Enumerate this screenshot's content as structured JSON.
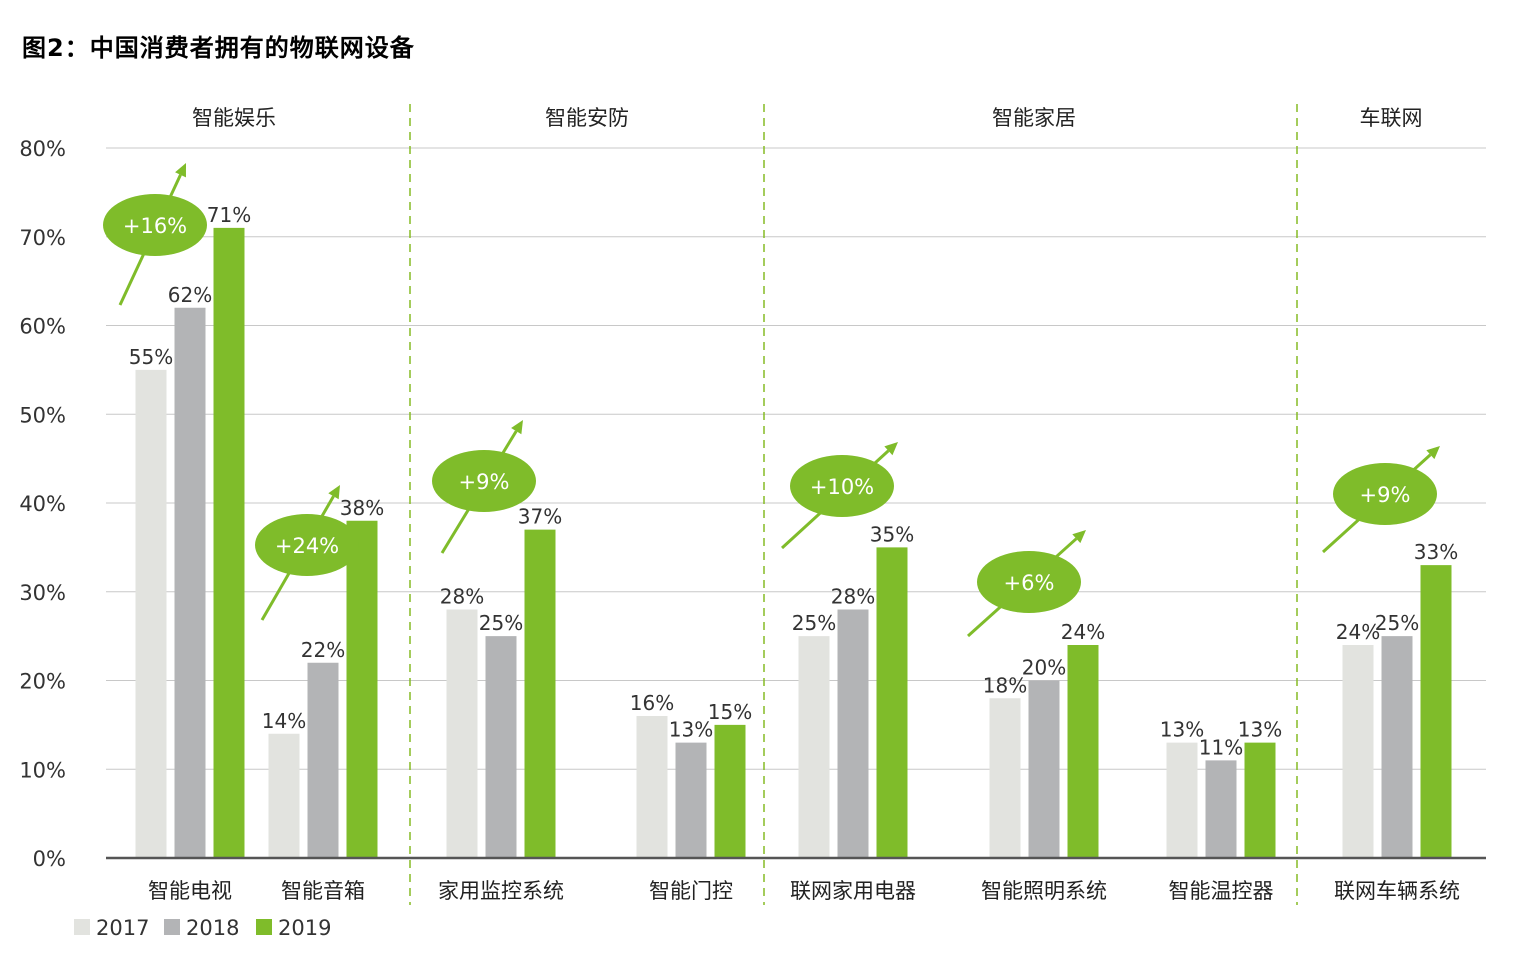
{
  "chart_data": {
    "type": "bar",
    "title": "图2：中国消费者拥有的物联网设备",
    "xlabel": "",
    "ylabel": "",
    "ylim": [
      0,
      80
    ],
    "yticks": [
      "0%",
      "10%",
      "20%",
      "30%",
      "40%",
      "50%",
      "60%",
      "70%",
      "80%"
    ],
    "grid": true,
    "legend_position": "bottom-left",
    "groups": [
      {
        "label": "智能娱乐",
        "categories": [
          0,
          1
        ]
      },
      {
        "label": "智能安防",
        "categories": [
          2,
          3
        ]
      },
      {
        "label": "智能家居",
        "categories": [
          4,
          5,
          6
        ]
      },
      {
        "label": "车联网",
        "categories": [
          7
        ]
      }
    ],
    "categories": [
      "智能电视",
      "智能音箱",
      "家用监控系统",
      "智能门控",
      "联网家用电器",
      "智能照明系统",
      "智能温控器",
      "联网车辆系统"
    ],
    "series": [
      {
        "name": "2017",
        "color": "#e2e3df",
        "values": [
          55,
          14,
          28,
          16,
          25,
          18,
          13,
          24
        ],
        "labels": [
          "55%",
          "14%",
          "28%",
          "16%",
          "25%",
          "18%",
          "13%",
          "24%"
        ]
      },
      {
        "name": "2018",
        "color": "#b3b4b6",
        "values": [
          62,
          22,
          25,
          13,
          28,
          20,
          11,
          25
        ],
        "labels": [
          "62%",
          "22%",
          "25%",
          "13%",
          "28%",
          "20%",
          "11%",
          "25%"
        ]
      },
      {
        "name": "2019",
        "color": "#7fbc2a",
        "values": [
          71,
          38,
          37,
          15,
          35,
          24,
          13,
          33
        ],
        "labels": [
          "71%",
          "38%",
          "37%",
          "15%",
          "35%",
          "24%",
          "13%",
          "33%"
        ]
      }
    ],
    "growth_annotations": [
      {
        "category": 0,
        "label": "+16%"
      },
      {
        "category": 1,
        "label": "+24%"
      },
      {
        "category": 2,
        "label": "+9%"
      },
      {
        "category": 4,
        "label": "+10%"
      },
      {
        "category": 5,
        "label": "+6%"
      },
      {
        "category": 7,
        "label": "+9%"
      }
    ],
    "colors": {
      "accent": "#7fbc2a",
      "grid": "#c8c8c8",
      "axis": "#555555",
      "divider": "#86bc25"
    }
  }
}
